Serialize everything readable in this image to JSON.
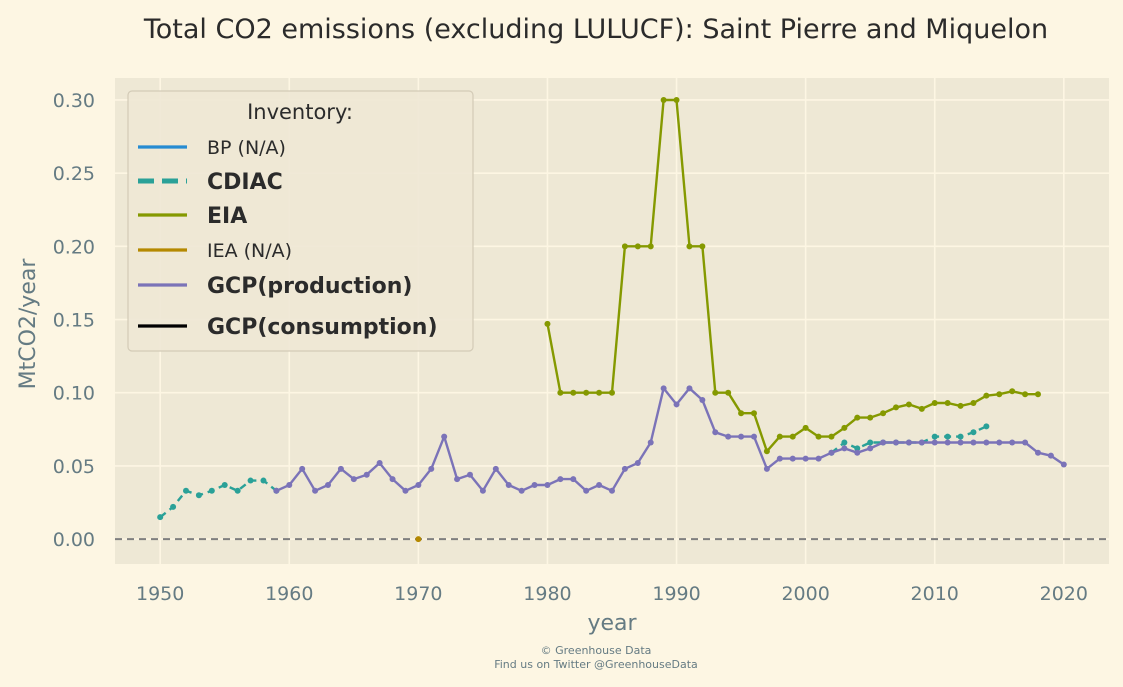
{
  "chart_data": {
    "type": "line",
    "title": "Total CO2 emissions (excluding LULUCF): Saint Pierre and Miquelon",
    "xlabel": "year",
    "ylabel": "MtCO2/year",
    "xlim": [
      1946.5,
      2023.5
    ],
    "ylim": [
      -0.017,
      0.315
    ],
    "xticks": [
      1950,
      1960,
      1970,
      1980,
      1990,
      2000,
      2010,
      2020
    ],
    "yticks": [
      0.0,
      0.05,
      0.1,
      0.15,
      0.2,
      0.25,
      0.3
    ],
    "ytick_labels": [
      "0.00",
      "0.05",
      "0.10",
      "0.15",
      "0.20",
      "0.25",
      "0.30"
    ],
    "grid": true,
    "legend_position": "top-left",
    "legend_title": "Inventory:",
    "zero_line": true,
    "series": [
      {
        "name": "BP (N/A)",
        "color": "#268bd2",
        "style": "solid",
        "bold": false,
        "markers": false,
        "x": [],
        "y": []
      },
      {
        "name": "CDIAC",
        "color": "#2aa198",
        "style": "dashed",
        "bold": true,
        "markers": true,
        "x": [
          1950,
          1951,
          1952,
          1953,
          1954,
          1955,
          1956,
          1957,
          1958,
          1959,
          2002,
          2003,
          2004,
          2005,
          2006,
          2007,
          2008,
          2009,
          2010,
          2011,
          2012,
          2013,
          2014
        ],
        "y": [
          0.015,
          0.022,
          0.033,
          0.03,
          0.033,
          0.037,
          0.033,
          0.04,
          0.04,
          0.033,
          0.059,
          0.066,
          0.062,
          0.066,
          0.066,
          0.066,
          0.066,
          0.066,
          0.07,
          0.07,
          0.07,
          0.073,
          0.077
        ]
      },
      {
        "name": "EIA",
        "color": "#859900",
        "style": "solid",
        "bold": true,
        "markers": true,
        "x": [
          1980,
          1981,
          1982,
          1983,
          1984,
          1985,
          1986,
          1987,
          1988,
          1989,
          1990,
          1991,
          1992,
          1993,
          1994,
          1995,
          1996,
          1997,
          1998,
          1999,
          2000,
          2001,
          2002,
          2003,
          2004,
          2005,
          2006,
          2007,
          2008,
          2009,
          2010,
          2011,
          2012,
          2013,
          2014,
          2015,
          2016,
          2017,
          2018
        ],
        "y": [
          0.147,
          0.1,
          0.1,
          0.1,
          0.1,
          0.1,
          0.2,
          0.2,
          0.2,
          0.3,
          0.3,
          0.2,
          0.2,
          0.1,
          0.1,
          0.086,
          0.086,
          0.06,
          0.07,
          0.07,
          0.076,
          0.07,
          0.07,
          0.076,
          0.083,
          0.083,
          0.086,
          0.09,
          0.092,
          0.089,
          0.093,
          0.093,
          0.091,
          0.093,
          0.098,
          0.099,
          0.101,
          0.099,
          0.099
        ]
      },
      {
        "name": "IEA (N/A)",
        "color": "#b58900",
        "style": "solid",
        "bold": false,
        "markers": true,
        "x": [
          1970
        ],
        "y": [
          0.0
        ]
      },
      {
        "name": "GCP(production)",
        "color": "#7b73b8",
        "style": "solid",
        "bold": true,
        "markers": true,
        "x": [
          1959,
          1960,
          1961,
          1962,
          1963,
          1964,
          1965,
          1966,
          1967,
          1968,
          1969,
          1970,
          1971,
          1972,
          1973,
          1974,
          1975,
          1976,
          1977,
          1978,
          1979,
          1980,
          1981,
          1982,
          1983,
          1984,
          1985,
          1986,
          1987,
          1988,
          1989,
          1990,
          1991,
          1992,
          1993,
          1994,
          1995,
          1996,
          1997,
          1998,
          1999,
          2000,
          2001,
          2002,
          2003,
          2004,
          2005,
          2006,
          2007,
          2008,
          2009,
          2010,
          2011,
          2012,
          2013,
          2014,
          2015,
          2016,
          2017,
          2018,
          2019,
          2020
        ],
        "y": [
          0.033,
          0.037,
          0.048,
          0.033,
          0.037,
          0.048,
          0.041,
          0.044,
          0.052,
          0.041,
          0.033,
          0.037,
          0.048,
          0.07,
          0.041,
          0.044,
          0.033,
          0.048,
          0.037,
          0.033,
          0.037,
          0.037,
          0.041,
          0.041,
          0.033,
          0.037,
          0.033,
          0.048,
          0.052,
          0.066,
          0.103,
          0.092,
          0.103,
          0.095,
          0.073,
          0.07,
          0.07,
          0.07,
          0.048,
          0.055,
          0.055,
          0.055,
          0.055,
          0.059,
          0.062,
          0.059,
          0.062,
          0.066,
          0.066,
          0.066,
          0.066,
          0.066,
          0.066,
          0.066,
          0.066,
          0.066,
          0.066,
          0.066,
          0.066,
          0.059,
          0.057,
          0.051
        ]
      },
      {
        "name": "GCP(consumption)",
        "color": "#000000",
        "style": "solid",
        "bold": true,
        "markers": false,
        "x": [],
        "y": []
      }
    ],
    "credit": [
      "© Greenhouse Data",
      "Find us on Twitter @GreenhouseData"
    ]
  }
}
